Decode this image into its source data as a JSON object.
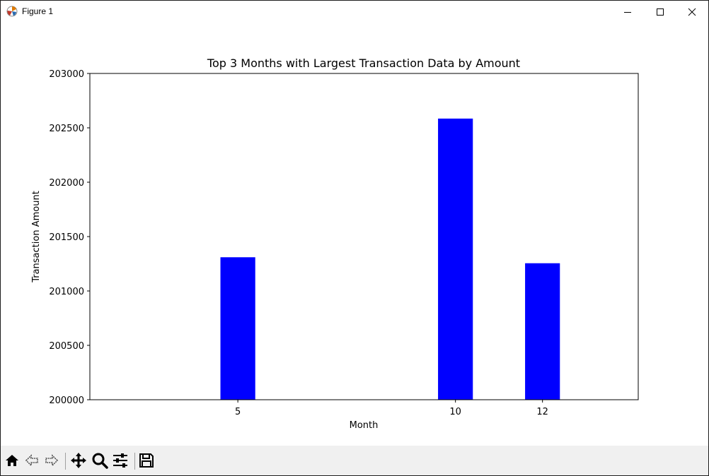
{
  "window": {
    "title": "Figure 1"
  },
  "toolbar": {
    "buttons": [
      "home-icon",
      "back-icon",
      "forward-icon",
      "pan-icon",
      "zoom-icon",
      "configure-subplots-icon",
      "save-icon"
    ]
  },
  "chart_data": {
    "type": "bar",
    "title": "Top 3 Months with Largest Transaction Data by Amount",
    "xlabel": "Month",
    "ylabel": "Transaction Amount",
    "x": [
      5,
      10,
      12
    ],
    "categories": [
      "5",
      "10",
      "12"
    ],
    "values": [
      201310,
      202585,
      201255
    ],
    "bar_width": 0.8,
    "xlim": [
      1.6,
      14.2
    ],
    "ylim": [
      200000,
      203000
    ],
    "yticks": [
      200000,
      200500,
      201000,
      201500,
      202000,
      202500,
      203000
    ],
    "ytick_labels": [
      "200000",
      "200500",
      "201000",
      "201500",
      "202000",
      "202500",
      "203000"
    ],
    "xticks": [
      5,
      10,
      12
    ],
    "xtick_labels": [
      "5",
      "10",
      "12"
    ],
    "bar_color": "#0000ff",
    "grid": false,
    "legend": false
  }
}
